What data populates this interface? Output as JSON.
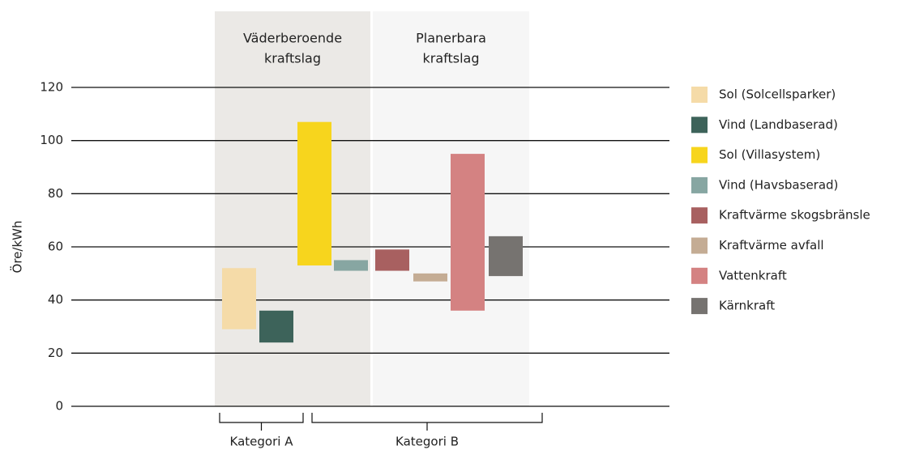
{
  "chart_data": {
    "type": "floating_bar",
    "ylabel": "Öre/kWh",
    "ylim": [
      0,
      120
    ],
    "yticks": [
      0,
      20,
      40,
      60,
      80,
      100,
      120
    ],
    "grid": true,
    "regions": [
      {
        "label": [
          "Väderberoende",
          "kraftslag"
        ],
        "color": "#ebe9e6"
      },
      {
        "label": [
          "Planerbara",
          "kraftslag"
        ],
        "color": "#f6f6f6"
      }
    ],
    "brackets": [
      "Kategori A",
      "Kategori B"
    ],
    "legend": "right",
    "series": [
      {
        "name": "Sol (Solcellsparker)",
        "color": "#f5dba8",
        "values": [
          29,
          52
        ]
      },
      {
        "name": "Vind (Landbaserad)",
        "color": "#3d635a",
        "values": [
          24,
          36
        ]
      },
      {
        "name": "Sol  (Villasystem)",
        "color": "#f7d51d",
        "values": [
          53,
          107
        ]
      },
      {
        "name": "Vind  (Havsbaserad)",
        "color": "#87a6a2",
        "values": [
          51,
          55
        ]
      },
      {
        "name": "Kraftvärme skogsbränsle",
        "color": "#a86060",
        "values": [
          51,
          59
        ]
      },
      {
        "name": "Kraftvärme avfall",
        "color": "#c4ac94",
        "values": [
          47,
          50
        ]
      },
      {
        "name": "Vattenkraft",
        "color": "#d48282",
        "values": [
          36,
          95
        ]
      },
      {
        "name": "Kärnkraft",
        "color": "#767370",
        "values": [
          49,
          64
        ]
      }
    ]
  }
}
